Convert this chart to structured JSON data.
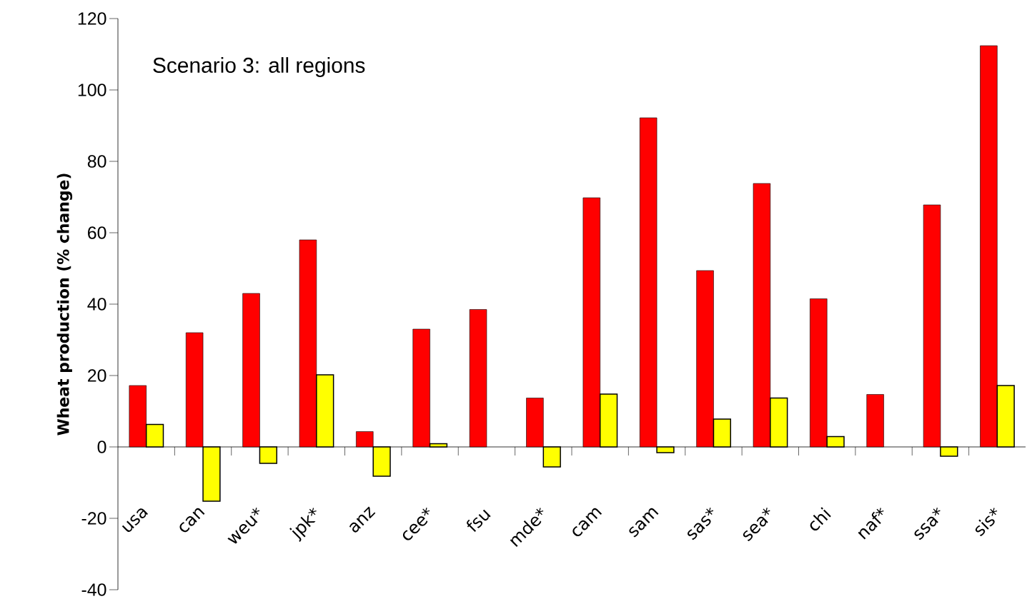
{
  "chart_data": {
    "type": "bar",
    "title": "Scenario 3: all regions",
    "ylabel": "Wheat production (% change)",
    "categories": [
      "usa",
      "can",
      "weu*",
      "jpk*",
      "anz",
      "cee*",
      "fsu",
      "mde*",
      "cam",
      "sam",
      "sas*",
      "sea*",
      "chi",
      "naf*",
      "ssa*",
      "sis*"
    ],
    "series": [
      {
        "color": "#ff0000",
        "values": [
          17.2,
          32,
          43,
          58,
          4.3,
          33,
          38.5,
          13.7,
          69.8,
          92.2,
          49.4,
          73.8,
          41.5,
          14.7,
          67.8,
          112.4
        ]
      },
      {
        "color": "#ffff00",
        "values": [
          6.3,
          -15.2,
          -4.6,
          20.2,
          -8.2,
          0.9,
          null,
          -5.6,
          14.8,
          -1.6,
          7.8,
          13.7,
          2.9,
          null,
          -2.6,
          17.2
        ]
      }
    ],
    "ylim": [
      -40,
      120
    ],
    "yticks": [
      -40,
      -20,
      0,
      20,
      40,
      60,
      80,
      100,
      120
    ]
  }
}
